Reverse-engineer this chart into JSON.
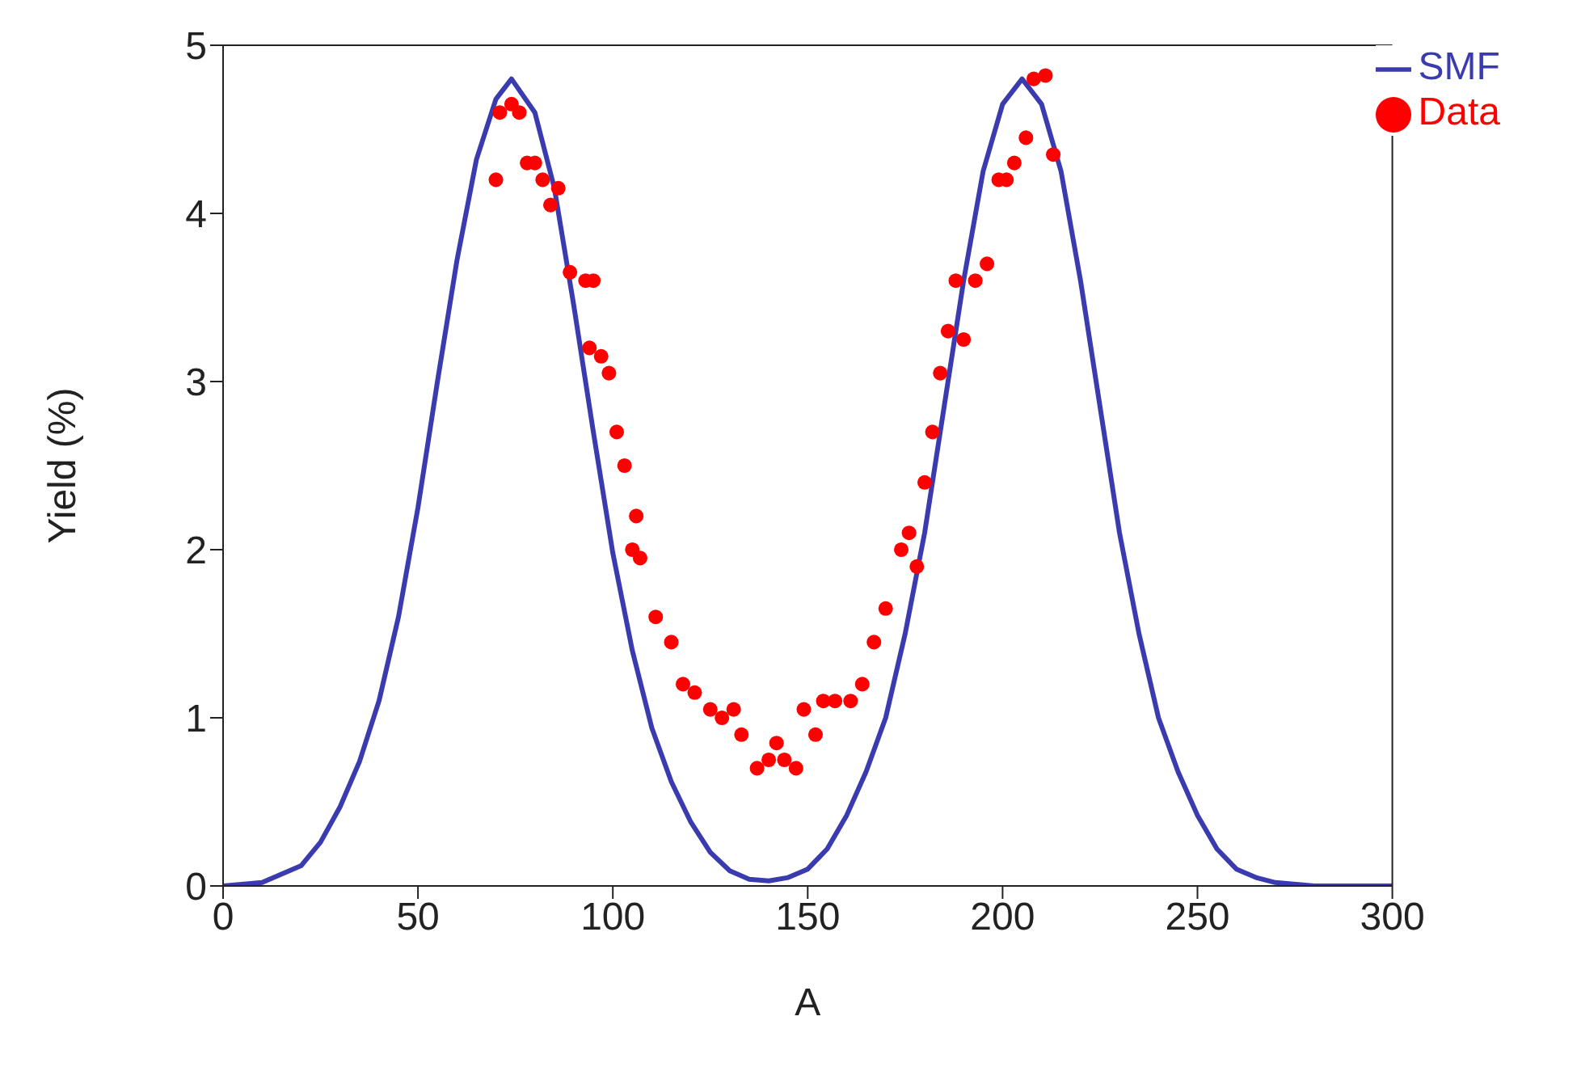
{
  "chart_data": {
    "type": "scatter",
    "xlabel": "A",
    "ylabel": "Yield (%)",
    "xlim": [
      0,
      300
    ],
    "xticks": [
      0,
      50,
      100,
      150,
      200,
      250,
      300
    ],
    "ylim": [
      0,
      5
    ],
    "yticks": [
      0,
      1,
      2,
      3,
      4,
      5
    ],
    "grid": false,
    "legend": "top right",
    "series": [
      {
        "name": "SMF",
        "type": "line",
        "color": "#3b3bb0",
        "marker": "none",
        "line_style": "solid",
        "x": [
          0,
          10,
          20,
          25,
          30,
          35,
          40,
          45,
          50,
          55,
          60,
          65,
          70,
          74,
          80,
          85,
          90,
          95,
          100,
          105,
          110,
          115,
          120,
          125,
          130,
          135,
          140,
          145,
          150,
          155,
          160,
          165,
          170,
          175,
          180,
          185,
          190,
          195,
          200,
          205,
          210,
          215,
          220,
          225,
          230,
          235,
          240,
          245,
          250,
          255,
          260,
          265,
          270,
          280,
          300
        ],
        "values": [
          0,
          0.02,
          0.12,
          0.26,
          0.47,
          0.74,
          1.1,
          1.6,
          2.25,
          3.0,
          3.72,
          4.32,
          4.68,
          4.8,
          4.6,
          4.15,
          3.45,
          2.7,
          1.98,
          1.4,
          0.94,
          0.62,
          0.38,
          0.2,
          0.09,
          0.04,
          0.03,
          0.05,
          0.1,
          0.22,
          0.42,
          0.68,
          1.0,
          1.5,
          2.1,
          2.85,
          3.6,
          4.25,
          4.65,
          4.8,
          4.65,
          4.25,
          3.6,
          2.85,
          2.1,
          1.5,
          1.0,
          0.68,
          0.42,
          0.22,
          0.1,
          0.05,
          0.02,
          0,
          0
        ]
      },
      {
        "name": "Data",
        "color": "#ff0000",
        "marker": "circle",
        "x": [
          70,
          71,
          74,
          76,
          78,
          80,
          82,
          84,
          86,
          89,
          93,
          95,
          94,
          97,
          99,
          101,
          103,
          106,
          107,
          105,
          111,
          115,
          118,
          121,
          125,
          128,
          131,
          133,
          137,
          140,
          142,
          144,
          147,
          149,
          152,
          154,
          157,
          161,
          164,
          167,
          170,
          174,
          176,
          178,
          180,
          182,
          184,
          186,
          188,
          190,
          193,
          196,
          199,
          201,
          203,
          206,
          208,
          211,
          213
        ],
        "values": [
          4.2,
          4.6,
          4.65,
          4.6,
          4.3,
          4.3,
          4.2,
          4.05,
          4.15,
          3.65,
          3.6,
          3.6,
          3.2,
          3.15,
          3.05,
          2.7,
          2.5,
          2.2,
          1.95,
          2.0,
          1.6,
          1.45,
          1.2,
          1.15,
          1.05,
          1.0,
          1.05,
          0.9,
          0.7,
          0.75,
          0.85,
          0.75,
          0.7,
          1.05,
          0.9,
          1.1,
          1.1,
          1.1,
          1.2,
          1.45,
          1.65,
          2.0,
          2.1,
          1.9,
          2.4,
          2.7,
          3.05,
          3.3,
          3.6,
          3.25,
          3.6,
          3.7,
          4.2,
          4.2,
          4.3,
          4.45,
          4.8,
          4.82,
          4.35
        ]
      }
    ]
  }
}
